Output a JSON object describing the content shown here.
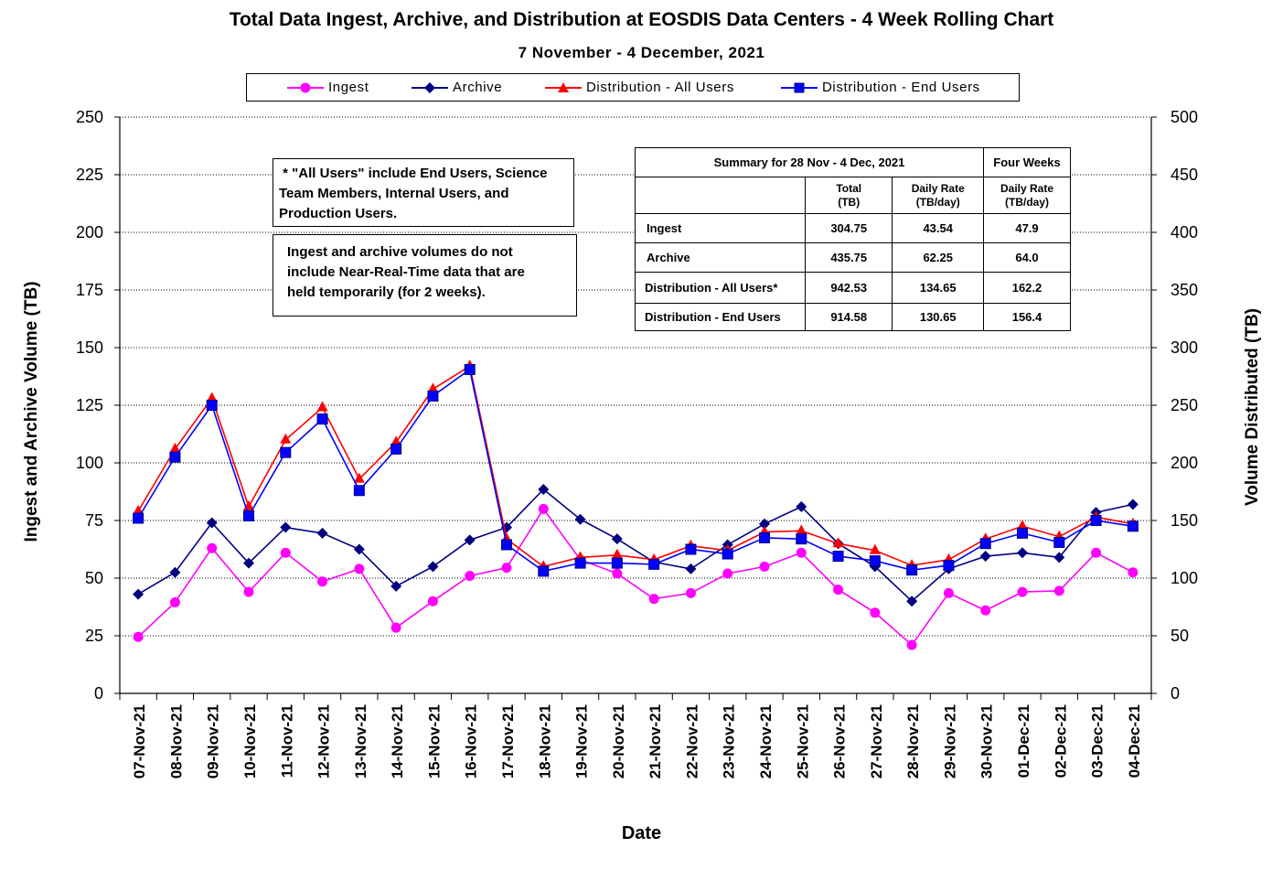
{
  "title": "Total Data Ingest, Archive, and  Distribution at EOSDIS Data Centers - 4 Week Rolling Chart",
  "subtitle": "7 November  - 4 December, 2021",
  "notes": {
    "all_users_line1": " * \"All Users\" include End Users, Science",
    "all_users_line2": "Team Members,  Internal Users, and",
    "all_users_line3": "Production Users.",
    "nrt_line1": "Ingest and archive volumes do not",
    "nrt_line2": "include Near-Real-Time data that are",
    "nrt_line3": "held temporarily (for 2 weeks)."
  },
  "summary": {
    "header": "Summary  for  28  Nov  -  4  Dec,  2021",
    "four_weeks": "Four Weeks",
    "col_total_1": "Total",
    "col_total_2": "(TB)",
    "col_daily_1": "Daily Rate",
    "col_daily_2": "(TB/day)",
    "col_fw_1": "Daily Rate",
    "col_fw_2": "(TB/day)",
    "rows": [
      {
        "label": "Ingest",
        "total": "304.75",
        "daily": "43.54",
        "four_weeks": "47.9"
      },
      {
        "label": "Archive",
        "total": "435.75",
        "daily": "62.25",
        "four_weeks": "64.0"
      },
      {
        "label": "Distribution - All Users*",
        "total": "942.53",
        "daily": "134.65",
        "four_weeks": "162.2"
      },
      {
        "label": "Distribution - End Users",
        "total": "914.58",
        "daily": "130.65",
        "four_weeks": "156.4"
      }
    ]
  },
  "chart_data": {
    "type": "line",
    "title": "Total Data Ingest, Archive, and  Distribution at EOSDIS Data Centers - 4 Week Rolling Chart",
    "xlabel": "Date",
    "ylabel": "Ingest and Archive Volume (TB)",
    "y2label": "Volume Distributed (TB)",
    "ylim": [
      0,
      250
    ],
    "y2lim": [
      0,
      500
    ],
    "yticks": [
      "0",
      "25",
      "50",
      "75",
      "100",
      "125",
      "150",
      "175",
      "200",
      "225",
      "250"
    ],
    "y2ticks": [
      "0",
      "50",
      "100",
      "150",
      "200",
      "250",
      "300",
      "350",
      "400",
      "450",
      "500"
    ],
    "grid": "horizontal dotted",
    "legend_position": "top",
    "categories": [
      "07-Nov-21",
      "08-Nov-21",
      "09-Nov-21",
      "10-Nov-21",
      "11-Nov-21",
      "12-Nov-21",
      "13-Nov-21",
      "14-Nov-21",
      "15-Nov-21",
      "16-Nov-21",
      "17-Nov-21",
      "18-Nov-21",
      "19-Nov-21",
      "20-Nov-21",
      "21-Nov-21",
      "22-Nov-21",
      "23-Nov-21",
      "24-Nov-21",
      "25-Nov-21",
      "26-Nov-21",
      "27-Nov-21",
      "28-Nov-21",
      "29-Nov-21",
      "30-Nov-21",
      "01-Dec-21",
      "02-Dec-21",
      "03-Dec-21",
      "04-Dec-21"
    ],
    "series": [
      {
        "name": "Ingest",
        "axis": "left",
        "color": "#ff00ff",
        "marker": "circle",
        "values": [
          24.5,
          39.5,
          63,
          44,
          61,
          48.5,
          54,
          28.5,
          40,
          51,
          54.5,
          80,
          58,
          52,
          41,
          43.5,
          52,
          55,
          61,
          45,
          35,
          21,
          43.5,
          36,
          44,
          44.5,
          61,
          52.5
        ]
      },
      {
        "name": "Archive",
        "axis": "left",
        "color": "#000080",
        "marker": "diamond",
        "values": [
          43,
          52.5,
          74,
          56.5,
          72,
          69.5,
          62.5,
          46.5,
          55,
          66.5,
          72,
          88.5,
          75.5,
          67,
          57,
          54,
          64.5,
          73.5,
          81,
          65,
          55,
          40,
          54,
          59.5,
          61,
          59,
          78.5,
          82
        ]
      },
      {
        "name": "Distribution - All Users",
        "axis": "right",
        "color": "#ff0000",
        "marker": "triangle",
        "values": [
          158,
          212,
          256,
          162,
          220,
          248,
          186,
          218,
          264,
          284,
          134,
          110,
          118,
          120,
          116,
          128,
          124,
          140,
          141,
          130,
          124,
          111,
          116,
          134,
          145,
          136,
          153,
          147
        ]
      },
      {
        "name": "Distribution - End Users",
        "axis": "right",
        "color": "#0000ff",
        "marker": "square",
        "values": [
          152,
          205,
          250,
          154,
          209,
          238,
          176,
          212,
          258,
          281,
          129,
          106,
          113,
          113,
          112,
          125,
          121,
          135,
          134,
          119,
          115,
          107,
          111,
          130,
          139,
          131,
          150,
          145
        ]
      }
    ]
  }
}
